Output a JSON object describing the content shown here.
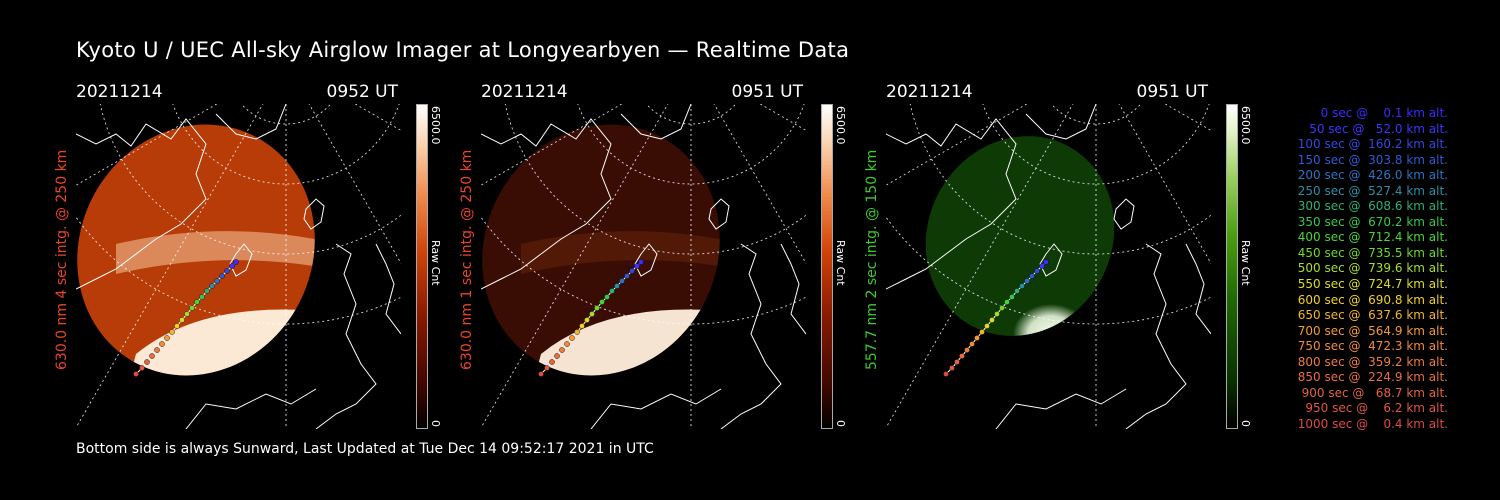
{
  "title": "Kyoto U / UEC All-sky Airglow Imager at Longyearbyen — Realtime Data",
  "footer": "Bottom side is always Sunward, Last Updated at Tue Dec 14 09:52:17 2021 in UTC",
  "panels": [
    {
      "date": "20211214",
      "time": "0952 UT",
      "ylabel": "630.0 nm 4 sec intg. @ 250 km",
      "label_color": "#e8452a",
      "cbar_max": "6500.0",
      "cbar_min": "0",
      "cbar_unit": "Raw Cnt",
      "palette": "red-bright"
    },
    {
      "date": "20211214",
      "time": "0951 UT",
      "ylabel": "630.0 nm 1 sec intg. @ 250 km",
      "label_color": "#e8452a",
      "cbar_max": "6500.0",
      "cbar_min": "0",
      "cbar_unit": "Raw Cnt",
      "palette": "red-dim"
    },
    {
      "date": "20211214",
      "time": "0951 UT",
      "ylabel": "557.7 nm 2 sec intg. @ 150 km",
      "label_color": "#3ecb2e",
      "cbar_max": "6500.0",
      "cbar_min": "0",
      "cbar_unit": "Raw Cnt",
      "palette": "green"
    }
  ],
  "trajectory_legend": [
    {
      "text": "   0 sec @    0.1 km alt.",
      "color": "#3a2cff"
    },
    {
      "text": "  50 sec @   52.0 km alt.",
      "color": "#3e34ff"
    },
    {
      "text": " 100 sec @  160.2 km alt.",
      "color": "#3448e0"
    },
    {
      "text": " 150 sec @  303.8 km alt.",
      "color": "#2f5ad2"
    },
    {
      "text": " 200 sec @  426.0 km alt.",
      "color": "#2d72c4"
    },
    {
      "text": " 250 sec @  527.4 km alt.",
      "color": "#2b8fa8"
    },
    {
      "text": " 300 sec @  608.6 km alt.",
      "color": "#2bb07a"
    },
    {
      "text": " 350 sec @  670.2 km alt.",
      "color": "#35c84e"
    },
    {
      "text": " 400 sec @  712.4 km alt.",
      "color": "#4ad436"
    },
    {
      "text": " 450 sec @  735.5 km alt.",
      "color": "#6ed82c"
    },
    {
      "text": " 500 sec @  739.6 km alt.",
      "color": "#a8dc2a"
    },
    {
      "text": " 550 sec @  724.7 km alt.",
      "color": "#dcdc26"
    },
    {
      "text": " 600 sec @  690.8 km alt.",
      "color": "#f2d024"
    },
    {
      "text": " 650 sec @  637.6 km alt.",
      "color": "#f4b42a"
    },
    {
      "text": " 700 sec @  564.9 km alt.",
      "color": "#f49a34"
    },
    {
      "text": " 750 sec @  472.3 km alt.",
      "color": "#f08a3a"
    },
    {
      "text": " 800 sec @  359.2 km alt.",
      "color": "#ec7c3e"
    },
    {
      "text": " 850 sec @  224.9 km alt.",
      "color": "#e86e40"
    },
    {
      "text": " 900 sec @   68.7 km alt.",
      "color": "#e46242"
    },
    {
      "text": " 950 sec @    6.2 km alt.",
      "color": "#e05644"
    },
    {
      "text": "1000 sec @    0.4 km alt.",
      "color": "#dc4a44"
    }
  ]
}
